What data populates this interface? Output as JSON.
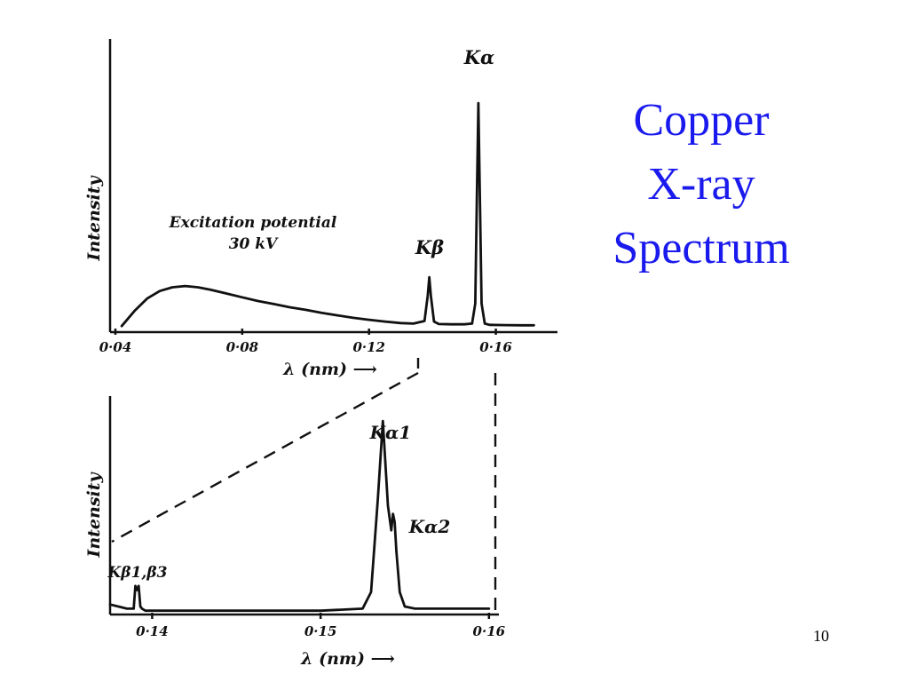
{
  "slide": {
    "title_lines": [
      "Copper",
      "X-ray",
      "Spectrum"
    ],
    "title_color": "#1a1aee",
    "page_number": "10"
  },
  "chart_data": [
    {
      "type": "line",
      "title": "",
      "xlabel": "λ (nm) ⟶",
      "ylabel": "Intensity",
      "x_ticks": [
        {
          "value": 0.04,
          "label": "0·04"
        },
        {
          "value": 0.08,
          "label": "0·08"
        },
        {
          "value": 0.12,
          "label": "0·12"
        },
        {
          "value": 0.16,
          "label": "0·16"
        }
      ],
      "xlim": [
        0.04,
        0.173
      ],
      "ylim": [
        0,
        1
      ],
      "grid": false,
      "series": [
        {
          "x": [
            0.042,
            0.046,
            0.05,
            0.054,
            0.058,
            0.062,
            0.066,
            0.07,
            0.075,
            0.08,
            0.085,
            0.09,
            0.095,
            0.1,
            0.105,
            0.11,
            0.115,
            0.12,
            0.125,
            0.13,
            0.134,
            0.1375,
            0.1385,
            0.139,
            0.1395,
            0.1405,
            0.142,
            0.146,
            0.15,
            0.1525,
            0.1535,
            0.154,
            0.1545,
            0.155,
            0.1555,
            0.1565,
            0.158,
            0.163,
            0.168,
            0.172
          ],
          "y": [
            0.01,
            0.07,
            0.12,
            0.15,
            0.165,
            0.17,
            0.165,
            0.155,
            0.14,
            0.125,
            0.11,
            0.098,
            0.085,
            0.075,
            0.063,
            0.053,
            0.043,
            0.035,
            0.028,
            0.022,
            0.02,
            0.03,
            0.13,
            0.205,
            0.13,
            0.028,
            0.018,
            0.017,
            0.017,
            0.02,
            0.1,
            0.5,
            0.9,
            0.5,
            0.1,
            0.02,
            0.015,
            0.014,
            0.013,
            0.013
          ]
        }
      ],
      "annotations": [
        {
          "text": "Excitation potential",
          "x": 0.061,
          "y": 0.36
        },
        {
          "text": "30 kV",
          "x": 0.065,
          "y": 0.28
        },
        {
          "text": "Kβ",
          "x": 0.136,
          "y": 0.27
        },
        {
          "text": "Kα",
          "x": 0.151,
          "y": 0.95
        }
      ]
    },
    {
      "type": "line",
      "title": "",
      "xlabel": "λ (nm) ⟶",
      "ylabel": "Intensity",
      "x_ticks": [
        {
          "value": 0.14,
          "label": "0·14"
        },
        {
          "value": 0.15,
          "label": "0·15"
        },
        {
          "value": 0.16,
          "label": "0·16"
        }
      ],
      "xlim": [
        0.1375,
        0.1608
      ],
      "ylim": [
        0,
        1
      ],
      "grid": false,
      "series": [
        {
          "x": [
            0.1375,
            0.1385,
            0.1389,
            0.139,
            0.1391,
            0.1392,
            0.1393,
            0.1394,
            0.1396,
            0.14,
            0.145,
            0.15,
            0.1525,
            0.153,
            0.1534,
            0.1537,
            0.154,
            0.1542,
            0.1543,
            0.1544,
            0.1545,
            0.1547,
            0.155,
            0.1556,
            0.158,
            0.16
          ],
          "y": [
            0.04,
            0.02,
            0.02,
            0.13,
            0.11,
            0.13,
            0.03,
            0.02,
            0.01,
            0.01,
            0.01,
            0.01,
            0.02,
            0.1,
            0.55,
            0.93,
            0.52,
            0.4,
            0.48,
            0.44,
            0.3,
            0.1,
            0.03,
            0.02,
            0.02,
            0.02
          ]
        }
      ],
      "annotations": [
        {
          "text": "Kβ1,β3",
          "x": 0.1388,
          "y": 0.26
        },
        {
          "text": "Kα1",
          "x": 0.1533,
          "y": 1.05
        },
        {
          "text": "Kα2",
          "x": 0.1552,
          "y": 0.56
        }
      ]
    }
  ]
}
